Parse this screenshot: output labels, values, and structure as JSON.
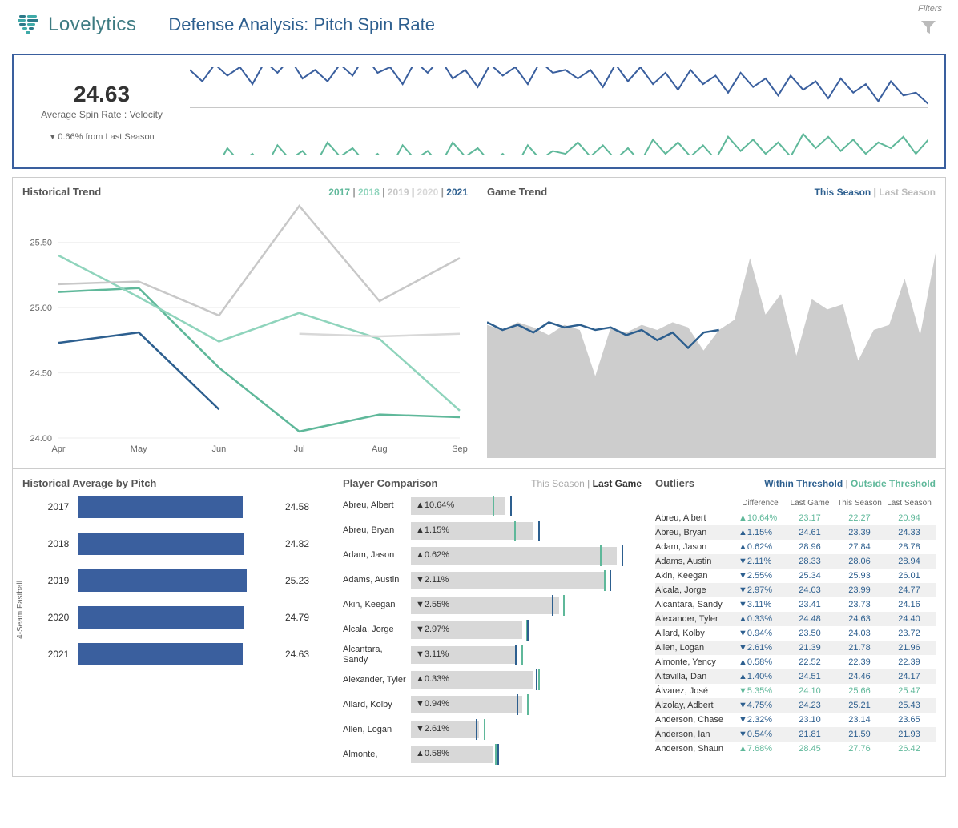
{
  "header": {
    "brand": "Lovelytics",
    "title": "Defense Analysis: Pitch Spin Rate",
    "filters_label": "Filters"
  },
  "colors": {
    "primary_blue": "#3a5f9e",
    "teal": "#5fb89a",
    "light_teal": "#8fd4bc",
    "gray_line": "#c8c8c8",
    "light_gray_line": "#d8d8d8",
    "panel_border": "#cccccc",
    "text_dark": "#333333",
    "text_muted": "#888888",
    "area_fill": "#c8c8c8"
  },
  "kpi": {
    "value": "24.63",
    "label": "Average Spin Rate : Velocity",
    "delta_text": "0.66% from Last Season",
    "delta_direction": "down",
    "spark_top_color": "#3a5f9e",
    "spark_bottom_color": "#5fb89a",
    "spark_mid_color": "#c8c8c8",
    "spark_top": [
      25.0,
      24.6,
      25.2,
      24.8,
      25.1,
      24.5,
      25.3,
      24.9,
      25.4,
      24.7,
      25.0,
      24.6,
      25.2,
      24.8,
      25.5,
      24.9,
      25.1,
      24.5,
      25.3,
      24.9,
      25.4,
      24.7,
      25.0,
      24.4,
      25.2,
      24.8,
      25.1,
      24.5,
      25.3,
      24.9,
      25.0,
      24.7,
      25.0,
      24.4,
      25.2,
      24.6,
      25.1,
      24.5,
      24.9,
      24.3,
      25.0,
      24.5,
      24.8,
      24.2,
      24.9,
      24.4,
      24.7,
      24.1,
      24.8,
      24.3,
      24.6,
      24.0,
      24.7,
      24.2,
      24.5,
      23.9,
      24.6,
      24.1,
      24.2,
      23.8
    ],
    "spark_bottom": [
      23.2,
      23.5,
      23.0,
      23.8,
      23.3,
      23.6,
      23.1,
      23.9,
      23.4,
      23.7,
      23.2,
      24.0,
      23.5,
      23.8,
      23.3,
      23.6,
      23.1,
      23.9,
      23.4,
      23.7,
      23.2,
      24.0,
      23.5,
      23.8,
      23.3,
      23.6,
      23.1,
      23.9,
      23.4,
      23.7,
      23.6,
      24.0,
      23.5,
      23.9,
      23.4,
      23.8,
      23.3,
      24.1,
      23.6,
      24.0,
      23.5,
      23.9,
      23.4,
      24.2,
      23.7,
      24.1,
      23.6,
      24.0,
      23.5,
      24.3,
      23.8,
      24.2,
      23.7,
      24.1,
      23.6,
      24.0,
      23.8,
      24.2,
      23.6,
      24.1
    ]
  },
  "historical_trend": {
    "title": "Historical Trend",
    "months": [
      "Apr",
      "May",
      "Jun",
      "Jul",
      "Aug",
      "Sep"
    ],
    "ylim": [
      24.0,
      25.75
    ],
    "yticks": [
      24.0,
      24.5,
      25.0,
      25.5
    ],
    "years": [
      {
        "label": "2017",
        "color": "#5fb89a",
        "values": [
          25.12,
          25.15,
          24.54,
          24.05,
          24.18,
          24.16
        ]
      },
      {
        "label": "2018",
        "color": "#8fd4bc",
        "values": [
          25.4,
          25.08,
          24.74,
          24.96,
          24.76,
          24.21
        ]
      },
      {
        "label": "2019",
        "color": "#c8c8c8",
        "values": [
          25.18,
          25.2,
          24.94,
          25.78,
          25.05,
          25.38
        ]
      },
      {
        "label": "2020",
        "color": "#d8d8d8",
        "values": [
          null,
          null,
          null,
          24.8,
          24.78,
          24.8
        ]
      },
      {
        "label": "2021",
        "color": "#2d5f8f",
        "values": [
          24.73,
          24.81,
          24.22,
          null,
          null,
          null
        ]
      }
    ]
  },
  "game_trend": {
    "title": "Game Trend",
    "legend_this": "This Season",
    "legend_last": "Last Season",
    "this_color": "#2d5f8f",
    "last_fill": "#c8c8c8",
    "ylim": [
      20,
      30
    ],
    "last_season": [
      25.2,
      25.0,
      25.3,
      25.1,
      24.8,
      25.2,
      25.0,
      23.2,
      25.1,
      24.9,
      25.2,
      25.0,
      25.3,
      25.1,
      24.2,
      25.0,
      25.4,
      27.8,
      25.6,
      26.4,
      24.0,
      26.2,
      25.8,
      26.0,
      23.8,
      25.0,
      25.2,
      27.0,
      24.8,
      28.0
    ],
    "this_season": [
      25.3,
      25.0,
      25.2,
      24.9,
      25.3,
      25.1,
      25.2,
      25.0,
      25.1,
      24.8,
      25.0,
      24.6,
      24.9,
      24.3,
      24.9,
      25.0
    ]
  },
  "historical_avg": {
    "title": "Historical Average by Pitch",
    "y_axis_label": "4-Seam Fastball",
    "xlim": [
      0,
      30
    ],
    "bar_color": "#3a5f9e",
    "bars": [
      {
        "year": "2017",
        "value": 24.58
      },
      {
        "year": "2018",
        "value": 24.82
      },
      {
        "year": "2019",
        "value": 25.23
      },
      {
        "year": "2020",
        "value": 24.79
      },
      {
        "year": "2021",
        "value": 24.63
      }
    ]
  },
  "player_comparison": {
    "title": "Player Comparison",
    "legend_this": "This Season",
    "legend_last": "Last Game",
    "bar_bg": "#d8d8d8",
    "tick_this": "#5fb89a",
    "tick_last": "#2d5f8f",
    "xlim": [
      18,
      30
    ],
    "rows": [
      {
        "name": "Abreu, Albert",
        "dir": "up",
        "pct": "10.64%",
        "this": 22.27,
        "last": 23.17
      },
      {
        "name": "Abreu, Bryan",
        "dir": "up",
        "pct": "1.15%",
        "this": 23.39,
        "last": 24.61
      },
      {
        "name": "Adam, Jason",
        "dir": "up",
        "pct": "0.62%",
        "this": 27.84,
        "last": 28.96
      },
      {
        "name": "Adams, Austin",
        "dir": "down",
        "pct": "2.11%",
        "this": 28.06,
        "last": 28.33
      },
      {
        "name": "Akin, Keegan",
        "dir": "down",
        "pct": "2.55%",
        "this": 25.93,
        "last": 25.34
      },
      {
        "name": "Alcala, Jorge",
        "dir": "down",
        "pct": "2.97%",
        "this": 23.99,
        "last": 24.03
      },
      {
        "name": "Alcantara, Sandy",
        "dir": "down",
        "pct": "3.11%",
        "this": 23.73,
        "last": 23.41
      },
      {
        "name": "Alexander, Tyler",
        "dir": "up",
        "pct": "0.33%",
        "this": 24.63,
        "last": 24.48
      },
      {
        "name": "Allard, Kolby",
        "dir": "down",
        "pct": "0.94%",
        "this": 24.03,
        "last": 23.5
      },
      {
        "name": "Allen, Logan",
        "dir": "down",
        "pct": "2.61%",
        "this": 21.78,
        "last": 21.39
      },
      {
        "name": "Almonte,",
        "dir": "up",
        "pct": "0.58%",
        "this": 22.39,
        "last": 22.52
      }
    ]
  },
  "outliers": {
    "title": "Outliers",
    "legend_within": "Within Threshold",
    "legend_outside": "Outside Threshold",
    "columns": [
      "Difference",
      "Last Game",
      "This Season",
      "Last Season"
    ],
    "rows": [
      {
        "name": "Abreu, Albert",
        "dir": "up",
        "pct": "10.64%",
        "cls": "outside",
        "last_game": "23.17",
        "this_season": "22.27",
        "last_season": "20.94"
      },
      {
        "name": "Abreu, Bryan",
        "dir": "up",
        "pct": "1.15%",
        "cls": "within",
        "last_game": "24.61",
        "this_season": "23.39",
        "last_season": "24.33"
      },
      {
        "name": "Adam, Jason",
        "dir": "up",
        "pct": "0.62%",
        "cls": "within",
        "last_game": "28.96",
        "this_season": "27.84",
        "last_season": "28.78"
      },
      {
        "name": "Adams, Austin",
        "dir": "down",
        "pct": "2.11%",
        "cls": "within",
        "last_game": "28.33",
        "this_season": "28.06",
        "last_season": "28.94"
      },
      {
        "name": "Akin, Keegan",
        "dir": "down",
        "pct": "2.55%",
        "cls": "within",
        "last_game": "25.34",
        "this_season": "25.93",
        "last_season": "26.01"
      },
      {
        "name": "Alcala, Jorge",
        "dir": "down",
        "pct": "2.97%",
        "cls": "within",
        "last_game": "24.03",
        "this_season": "23.99",
        "last_season": "24.77"
      },
      {
        "name": "Alcantara, Sandy",
        "dir": "down",
        "pct": "3.11%",
        "cls": "within",
        "last_game": "23.41",
        "this_season": "23.73",
        "last_season": "24.16"
      },
      {
        "name": "Alexander, Tyler",
        "dir": "up",
        "pct": "0.33%",
        "cls": "within",
        "last_game": "24.48",
        "this_season": "24.63",
        "last_season": "24.40"
      },
      {
        "name": "Allard, Kolby",
        "dir": "down",
        "pct": "0.94%",
        "cls": "within",
        "last_game": "23.50",
        "this_season": "24.03",
        "last_season": "23.72"
      },
      {
        "name": "Allen, Logan",
        "dir": "down",
        "pct": "2.61%",
        "cls": "within",
        "last_game": "21.39",
        "this_season": "21.78",
        "last_season": "21.96"
      },
      {
        "name": "Almonte, Yency",
        "dir": "up",
        "pct": "0.58%",
        "cls": "within",
        "last_game": "22.52",
        "this_season": "22.39",
        "last_season": "22.39"
      },
      {
        "name": "Altavilla, Dan",
        "dir": "up",
        "pct": "1.40%",
        "cls": "within",
        "last_game": "24.51",
        "this_season": "24.46",
        "last_season": "24.17"
      },
      {
        "name": "Álvarez, José",
        "dir": "down",
        "pct": "5.35%",
        "cls": "outside",
        "last_game": "24.10",
        "this_season": "25.66",
        "last_season": "25.47"
      },
      {
        "name": "Alzolay, Adbert",
        "dir": "down",
        "pct": "4.75%",
        "cls": "within",
        "last_game": "24.23",
        "this_season": "25.21",
        "last_season": "25.43"
      },
      {
        "name": "Anderson, Chase",
        "dir": "down",
        "pct": "2.32%",
        "cls": "within",
        "last_game": "23.10",
        "this_season": "23.14",
        "last_season": "23.65"
      },
      {
        "name": "Anderson, Ian",
        "dir": "down",
        "pct": "0.54%",
        "cls": "within",
        "last_game": "21.81",
        "this_season": "21.59",
        "last_season": "21.93"
      },
      {
        "name": "Anderson, Shaun",
        "dir": "up",
        "pct": "7.68%",
        "cls": "outside",
        "last_game": "28.45",
        "this_season": "27.76",
        "last_season": "26.42"
      }
    ]
  }
}
